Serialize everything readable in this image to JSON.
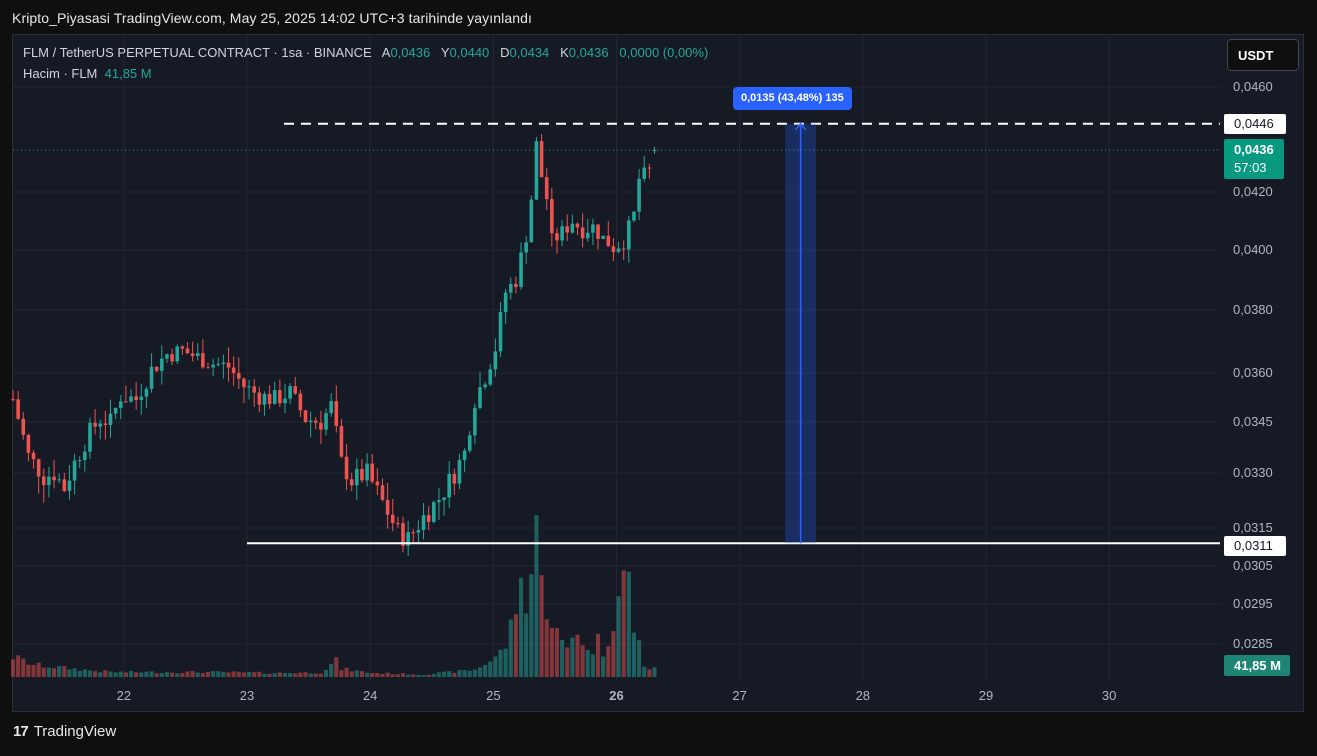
{
  "page_title": "Kripto_Piyasasi TradingView.com, May 25, 2025 14:02 UTC+3 tarihinde yayınlandı",
  "legend": {
    "symbol": "FLM / TetherUS PERPETUAL CONTRACT · 1sa · BINANCE",
    "o_label": "A",
    "o_value": "0,0436",
    "h_label": "Y",
    "h_value": "0,0440",
    "l_label": "D",
    "l_value": "0,0434",
    "c_label": "K",
    "c_value": "0,0436",
    "change": "0,0000 (0,00%)",
    "volume_label": "Hacim · FLM",
    "volume_value": "41,85 M"
  },
  "currency_button": "USDT",
  "measure": {
    "label": "0,0135 (43,48%) 135",
    "top_price": 0.0446,
    "bottom_price": 0.0311
  },
  "price_tags": {
    "top_line": "0,0446",
    "current_price": "0,0436",
    "countdown": "57:03",
    "bottom_line": "0,0311",
    "volume": "41,85 M"
  },
  "footer": {
    "logo_mark": "17",
    "logo_text": "TradingView"
  },
  "colors": {
    "up": "#26a69a",
    "down": "#ef5350",
    "measure": "#2962ff",
    "background": "#161a25"
  },
  "chart_data": {
    "type": "candlestick",
    "title": "FLM / TetherUS PERPETUAL CONTRACT · 1sa · BINANCE",
    "y_ticks": [
      0.046,
      0.042,
      0.04,
      0.038,
      0.036,
      0.0345,
      0.033,
      0.0315,
      0.0305,
      0.0295,
      0.0285
    ],
    "y_tick_labels": [
      "0,0460",
      "0,0420",
      "0,0400",
      "0,0380",
      "0,0360",
      "0,0345",
      "0,0330",
      "0,0315",
      "0,0305",
      "0,0295",
      "0,0285"
    ],
    "x_ticks": [
      {
        "day": 22,
        "label": "22"
      },
      {
        "day": 23,
        "label": "23"
      },
      {
        "day": 24,
        "label": "24"
      },
      {
        "day": 25,
        "label": "25"
      },
      {
        "day": 26,
        "label": "26"
      },
      {
        "day": 27,
        "label": "27"
      },
      {
        "day": 28,
        "label": "28"
      },
      {
        "day": 29,
        "label": "29"
      },
      {
        "day": 30,
        "label": "30"
      }
    ],
    "x_start_day": 21.1,
    "x_end_day": 30.9,
    "interval_hours": 1,
    "anchors": [
      [
        0,
        0.0352
      ],
      [
        3,
        0.0335
      ],
      [
        6,
        0.0329
      ],
      [
        8,
        0.033
      ],
      [
        10,
        0.0326
      ],
      [
        12,
        0.0333
      ],
      [
        15,
        0.0342
      ],
      [
        17,
        0.0346
      ],
      [
        19,
        0.0345
      ],
      [
        21,
        0.0353
      ],
      [
        24,
        0.0352
      ],
      [
        27,
        0.0361
      ],
      [
        30,
        0.0366
      ],
      [
        33,
        0.0367
      ],
      [
        36,
        0.0365
      ],
      [
        39,
        0.0363
      ],
      [
        42,
        0.0362
      ],
      [
        45,
        0.0356
      ],
      [
        48,
        0.0353
      ],
      [
        51,
        0.0352
      ],
      [
        54,
        0.0354
      ],
      [
        57,
        0.0346
      ],
      [
        60,
        0.0345
      ],
      [
        62,
        0.035
      ],
      [
        64,
        0.0333
      ],
      [
        66,
        0.0328
      ],
      [
        69,
        0.033
      ],
      [
        72,
        0.0322
      ],
      [
        75,
        0.0314
      ],
      [
        77,
        0.0312
      ],
      [
        80,
        0.0318
      ],
      [
        83,
        0.0323
      ],
      [
        86,
        0.033
      ],
      [
        88,
        0.0336
      ],
      [
        90,
        0.0352
      ],
      [
        92,
        0.0359
      ],
      [
        94,
        0.0368
      ],
      [
        96,
        0.0386
      ],
      [
        98,
        0.039
      ],
      [
        100,
        0.0405
      ],
      [
        101,
        0.0418
      ],
      [
        102,
        0.0438
      ],
      [
        103,
        0.0426
      ],
      [
        104,
        0.0418
      ],
      [
        105,
        0.0403
      ],
      [
        107,
        0.0406
      ],
      [
        109,
        0.041
      ],
      [
        111,
        0.0407
      ],
      [
        113,
        0.0408
      ],
      [
        115,
        0.0404
      ],
      [
        117,
        0.0401
      ],
      [
        119,
        0.0403
      ],
      [
        121,
        0.0412
      ],
      [
        122,
        0.0425
      ],
      [
        124,
        0.0428
      ],
      [
        125,
        0.0436
      ]
    ],
    "volume_anchors": [
      [
        0,
        5
      ],
      [
        4,
        3
      ],
      [
        8,
        2.5
      ],
      [
        12,
        2
      ],
      [
        16,
        1.5
      ],
      [
        20,
        1.2
      ],
      [
        30,
        1.2
      ],
      [
        40,
        1.2
      ],
      [
        50,
        1
      ],
      [
        60,
        1.1
      ],
      [
        62,
        3
      ],
      [
        63,
        4
      ],
      [
        64,
        2
      ],
      [
        70,
        1
      ],
      [
        80,
        0.6
      ],
      [
        90,
        1.8
      ],
      [
        93,
        4
      ],
      [
        95,
        6
      ],
      [
        96,
        8
      ],
      [
        97,
        12
      ],
      [
        98,
        18
      ],
      [
        99,
        22
      ],
      [
        100,
        20
      ],
      [
        101,
        26
      ],
      [
        102,
        40
      ],
      [
        103,
        22
      ],
      [
        104,
        18
      ],
      [
        105,
        14
      ],
      [
        106,
        11
      ],
      [
        107,
        8
      ],
      [
        108,
        7
      ],
      [
        109,
        10
      ],
      [
        110,
        12
      ],
      [
        111,
        9
      ],
      [
        112,
        6
      ],
      [
        113,
        7
      ],
      [
        114,
        9
      ],
      [
        115,
        6
      ],
      [
        116,
        10
      ],
      [
        117,
        14
      ],
      [
        118,
        20
      ],
      [
        119,
        24
      ],
      [
        120,
        24
      ],
      [
        121,
        12
      ],
      [
        122,
        8
      ],
      [
        123,
        3
      ],
      [
        124,
        2
      ],
      [
        125,
        2
      ]
    ],
    "volume_max_label": "41,85 M",
    "last": {
      "open": 0.0436,
      "high": 0.044,
      "low": 0.0434,
      "close": 0.0436
    },
    "horizontal_lines": [
      {
        "price": 0.0446,
        "style": "dashed",
        "from_day": 23.3
      },
      {
        "price": 0.0311,
        "style": "solid",
        "from_day": 23.0
      },
      {
        "price": 0.0436,
        "style": "dotted",
        "color": "#26a69a"
      }
    ],
    "price_range_box": {
      "from_day": 27.37,
      "to_day": 27.62,
      "top": 0.0446,
      "bottom": 0.0311
    }
  }
}
